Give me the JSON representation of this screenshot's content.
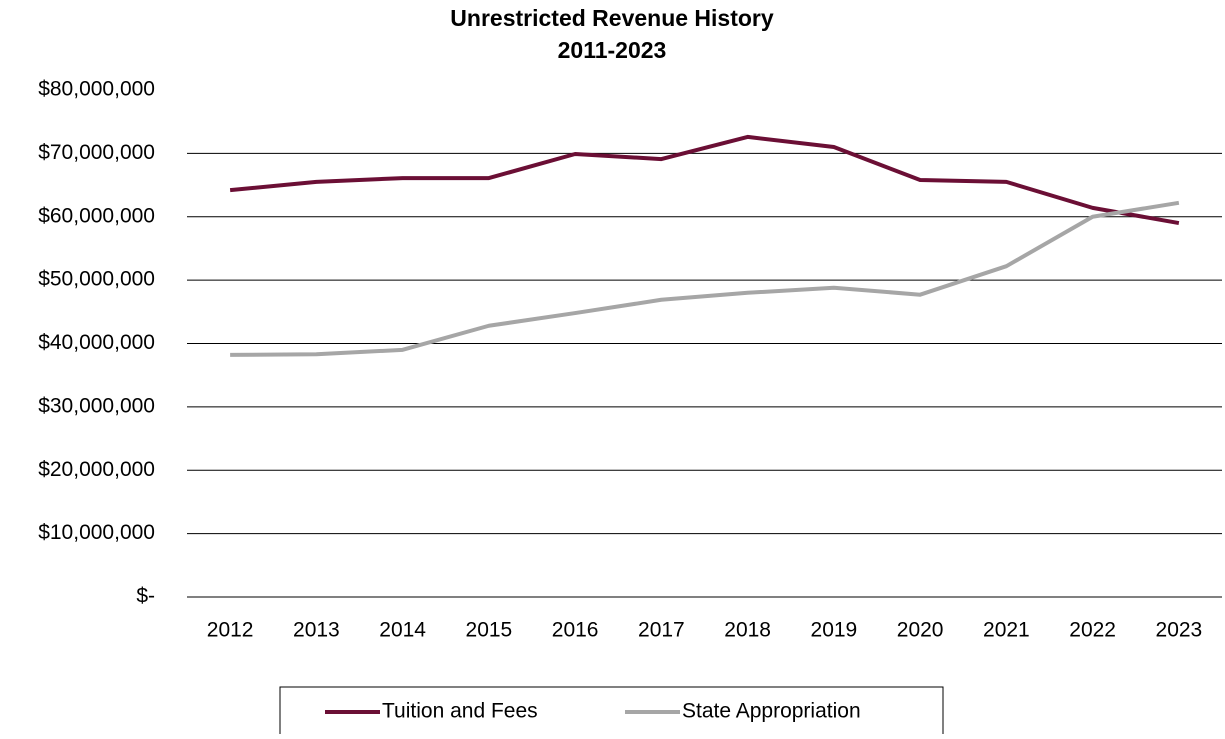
{
  "chart_data": {
    "type": "line",
    "title": "Unrestricted Revenue History",
    "subtitle": "2011-2023",
    "categories": [
      "2012",
      "2013",
      "2014",
      "2015",
      "2016",
      "2017",
      "2018",
      "2019",
      "2020",
      "2021",
      "2022",
      "2023"
    ],
    "series": [
      {
        "name": "Tuition and Fees",
        "color": "#6b0f35",
        "values": [
          64200000,
          65500000,
          66100000,
          66100000,
          69900000,
          69100000,
          72600000,
          71000000,
          65800000,
          65500000,
          61400000,
          59000000
        ]
      },
      {
        "name": "State Appropriation",
        "color": "#a6a6a6",
        "values": [
          38200000,
          38300000,
          39000000,
          42800000,
          44800000,
          46900000,
          48000000,
          48800000,
          47700000,
          52200000,
          60000000,
          62200000
        ]
      }
    ],
    "ylim": [
      0,
      80000000
    ],
    "yticks": [
      {
        "value": 0,
        "label": "$-"
      },
      {
        "value": 10000000,
        "label": "$10,000,000"
      },
      {
        "value": 20000000,
        "label": "$20,000,000"
      },
      {
        "value": 30000000,
        "label": "$30,000,000"
      },
      {
        "value": 40000000,
        "label": "$40,000,000"
      },
      {
        "value": 50000000,
        "label": "$50,000,000"
      },
      {
        "value": 60000000,
        "label": "$60,000,000"
      },
      {
        "value": 70000000,
        "label": "$70,000,000"
      },
      {
        "value": 80000000,
        "label": "$80,000,000"
      }
    ],
    "grid": true,
    "legend": "bottom"
  }
}
